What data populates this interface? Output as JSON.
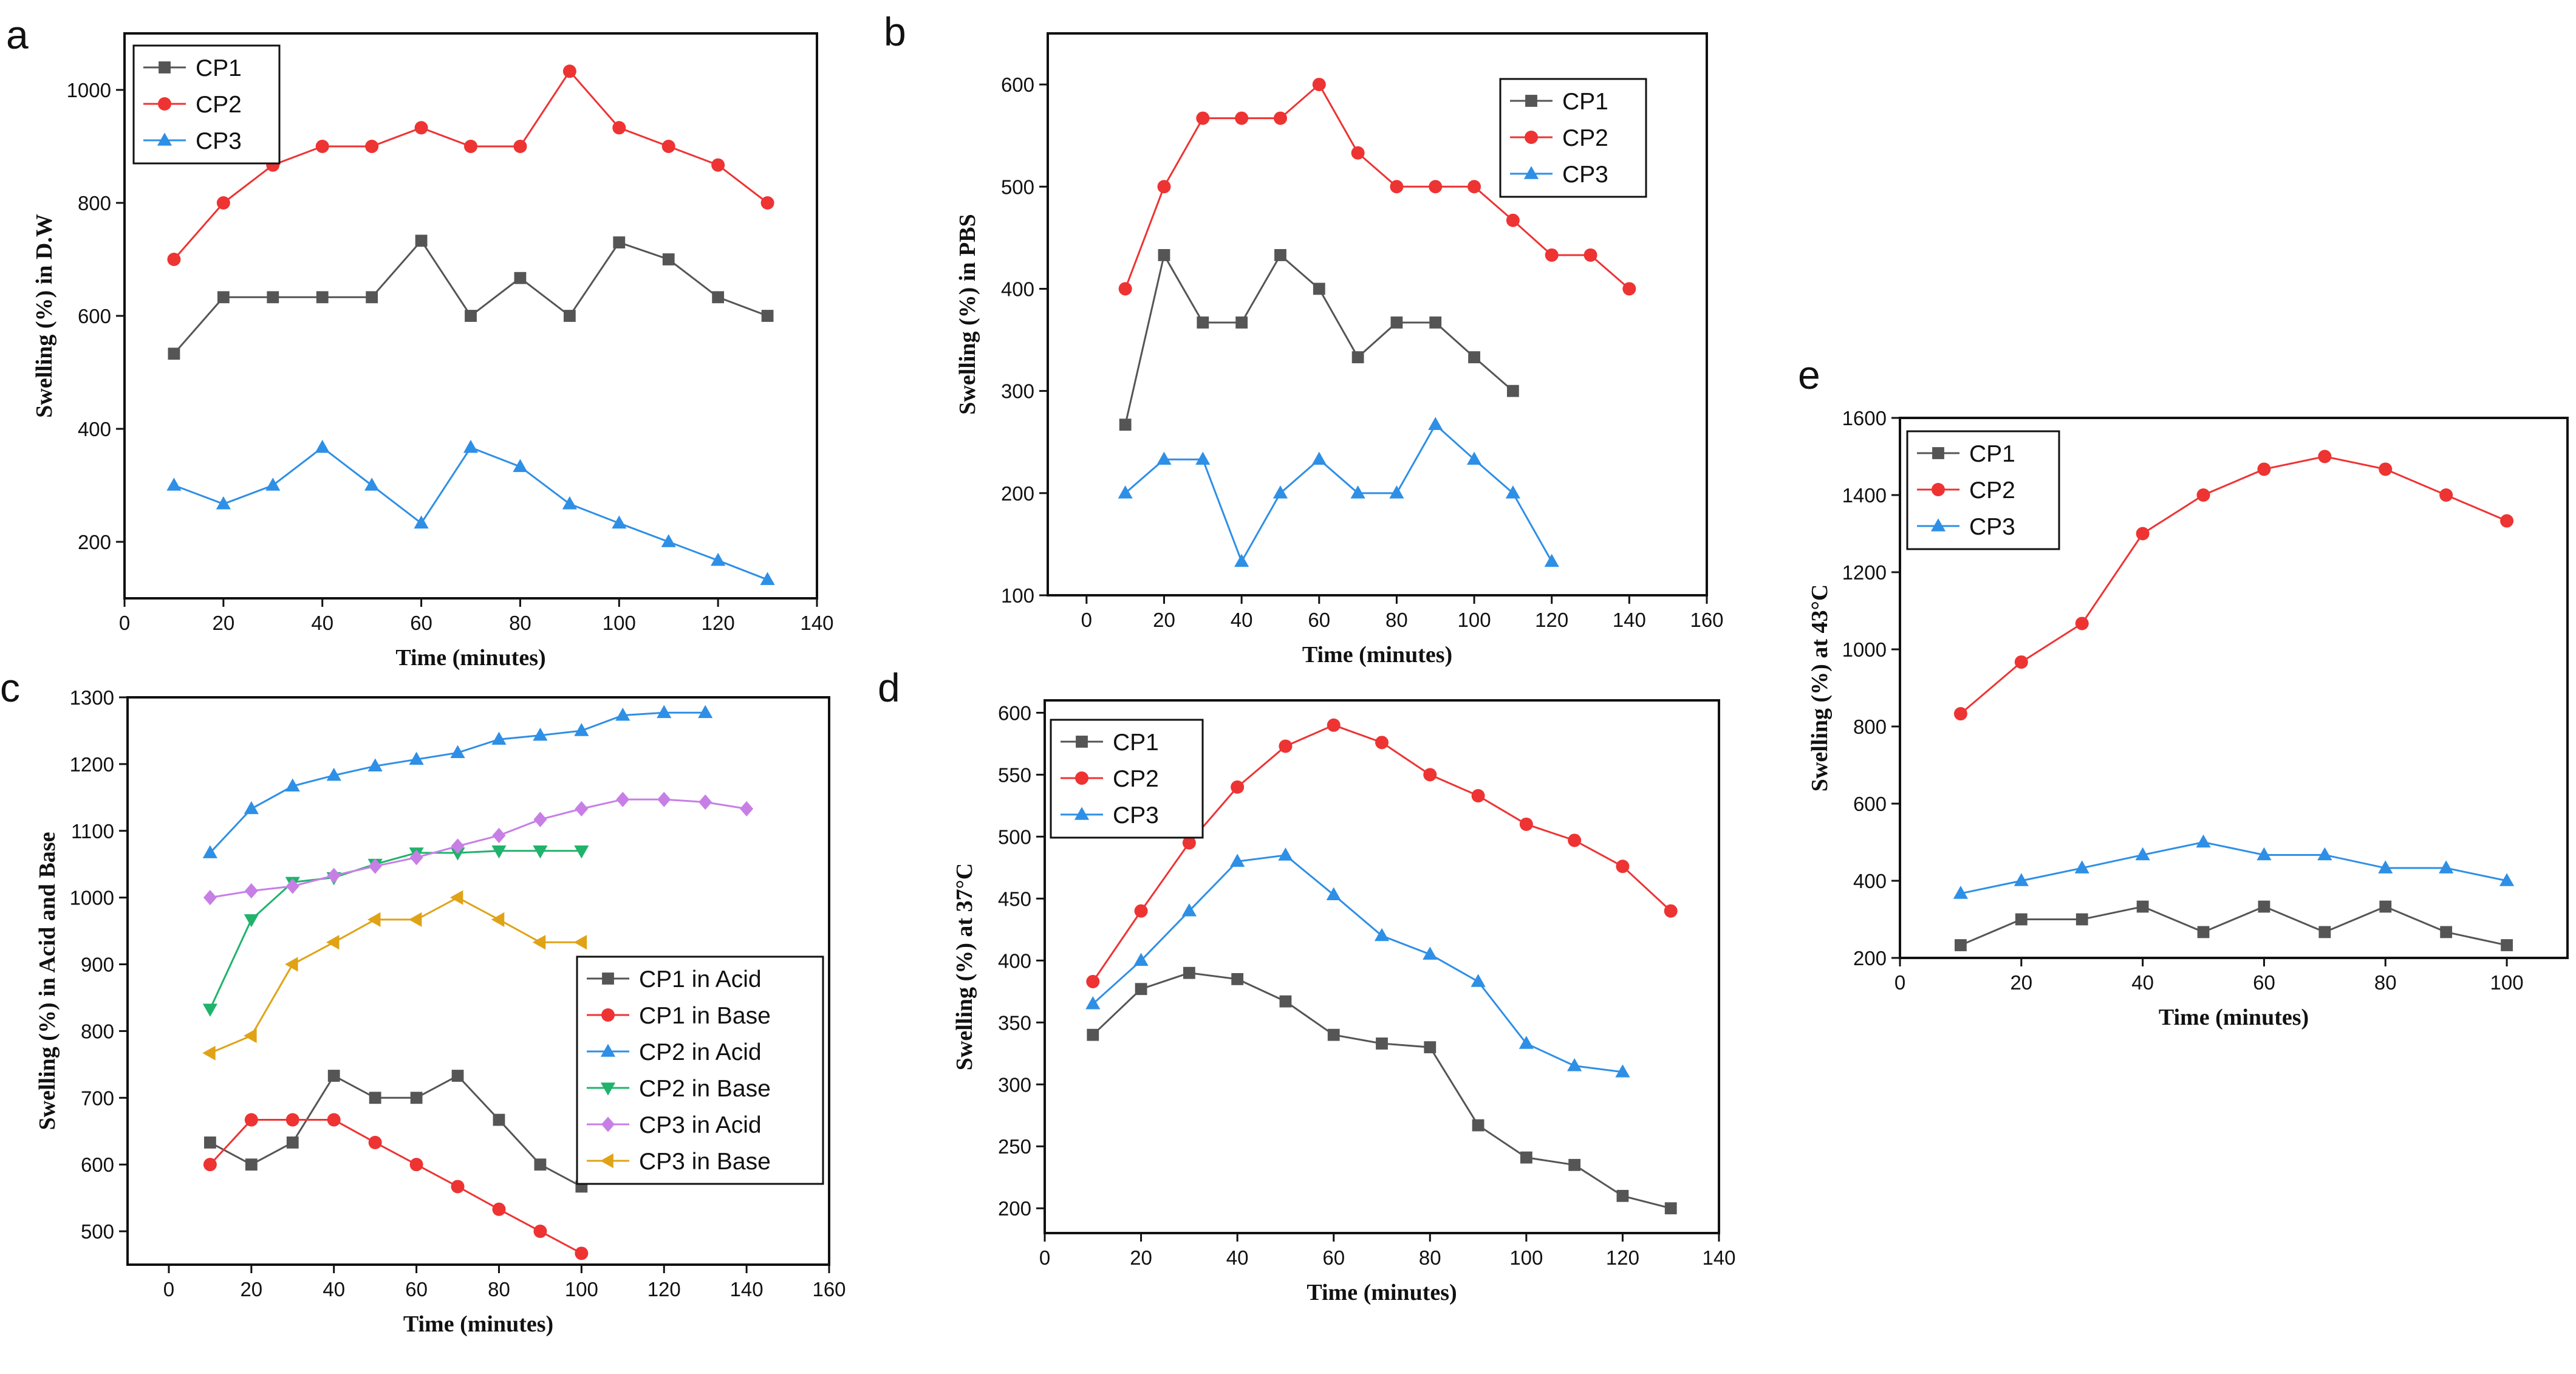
{
  "chart_data": [
    {
      "panel": "a",
      "type": "line",
      "ylabel": "Swelling (%) in D.W",
      "xlabel": "Time (minutes)",
      "xlim": [
        0,
        140
      ],
      "ylim": [
        100,
        1100
      ],
      "xticks": [
        0,
        20,
        40,
        60,
        80,
        100,
        120,
        140
      ],
      "yticks": [
        200,
        400,
        600,
        800,
        1000
      ],
      "legend_position": "top-left",
      "series": [
        {
          "name": "CP1",
          "color": "#555555",
          "marker": "square",
          "x": [
            10,
            20,
            30,
            40,
            50,
            60,
            70,
            80,
            90,
            100,
            110,
            120,
            130
          ],
          "y": [
            533,
            633,
            633,
            633,
            633,
            733,
            600,
            667,
            600,
            730,
            700,
            633,
            600
          ]
        },
        {
          "name": "CP2",
          "color": "#ee3333",
          "marker": "circle",
          "x": [
            10,
            20,
            30,
            40,
            50,
            60,
            70,
            80,
            90,
            100,
            110,
            120,
            130
          ],
          "y": [
            700,
            800,
            867,
            900,
            900,
            933,
            900,
            900,
            1033,
            933,
            900,
            867,
            800
          ]
        },
        {
          "name": "CP3",
          "color": "#2e8fe6",
          "marker": "triangle-up",
          "x": [
            10,
            20,
            30,
            40,
            50,
            60,
            70,
            80,
            90,
            100,
            110,
            120,
            130
          ],
          "y": [
            300,
            267,
            300,
            367,
            300,
            233,
            367,
            333,
            267,
            233,
            200,
            167,
            133
          ]
        }
      ]
    },
    {
      "panel": "b",
      "type": "line",
      "ylabel": "Swelling (%) in PBS",
      "xlabel": "Time (minutes)",
      "xlim": [
        -10,
        160
      ],
      "ylim": [
        100,
        650
      ],
      "xticks": [
        0,
        20,
        40,
        60,
        80,
        100,
        120,
        140,
        160
      ],
      "yticks": [
        100,
        200,
        300,
        400,
        500,
        600
      ],
      "legend_position": "top-right",
      "series": [
        {
          "name": "CP1",
          "color": "#555555",
          "marker": "square",
          "x": [
            10,
            20,
            30,
            40,
            50,
            60,
            70,
            80,
            90,
            100,
            110
          ],
          "y": [
            267,
            433,
            367,
            367,
            433,
            400,
            333,
            367,
            367,
            333,
            300
          ]
        },
        {
          "name": "CP2",
          "color": "#ee3333",
          "marker": "circle",
          "x": [
            10,
            20,
            30,
            40,
            50,
            60,
            70,
            80,
            90,
            100,
            110,
            120,
            130,
            140
          ],
          "y": [
            400,
            500,
            567,
            567,
            567,
            600,
            533,
            500,
            500,
            500,
            467,
            433,
            433,
            400
          ]
        },
        {
          "name": "CP3",
          "color": "#2e8fe6",
          "marker": "triangle-up",
          "x": [
            10,
            20,
            30,
            40,
            50,
            60,
            70,
            80,
            90,
            100,
            110,
            120
          ],
          "y": [
            200,
            233,
            233,
            133,
            200,
            233,
            200,
            200,
            267,
            233,
            200,
            133
          ]
        }
      ]
    },
    {
      "panel": "c",
      "type": "line",
      "ylabel": "Swelling (%) in Acid and Base",
      "xlabel": "Time (minutes)",
      "xlim": [
        -10,
        160
      ],
      "ylim": [
        450,
        1300
      ],
      "xticks": [
        0,
        20,
        40,
        60,
        80,
        100,
        120,
        140,
        160
      ],
      "yticks": [
        500,
        600,
        700,
        800,
        900,
        1000,
        1100,
        1200,
        1300
      ],
      "legend_position": "bottom-right",
      "series": [
        {
          "name": "CP1 in Acid",
          "color": "#555555",
          "marker": "square",
          "x": [
            10,
            20,
            30,
            40,
            50,
            60,
            70,
            80,
            90,
            100
          ],
          "y": [
            633,
            600,
            633,
            733,
            700,
            700,
            733,
            667,
            600,
            567
          ]
        },
        {
          "name": "CP1 in Base",
          "color": "#ee3333",
          "marker": "circle",
          "x": [
            10,
            20,
            30,
            40,
            50,
            60,
            70,
            80,
            90,
            100
          ],
          "y": [
            600,
            667,
            667,
            667,
            633,
            600,
            567,
            533,
            500,
            467
          ]
        },
        {
          "name": "CP2 in Acid",
          "color": "#2e8fe6",
          "marker": "triangle-up",
          "x": [
            10,
            20,
            30,
            40,
            50,
            60,
            70,
            80,
            90,
            100,
            110,
            120,
            130
          ],
          "y": [
            1067,
            1133,
            1167,
            1183,
            1197,
            1207,
            1217,
            1237,
            1243,
            1250,
            1273,
            1277,
            1277
          ]
        },
        {
          "name": "CP2 in Base",
          "color": "#1fb36b",
          "marker": "triangle-down",
          "x": [
            10,
            20,
            30,
            40,
            50,
            60,
            70,
            80,
            90,
            100
          ],
          "y": [
            833,
            967,
            1023,
            1030,
            1050,
            1067,
            1067,
            1070,
            1070,
            1070
          ]
        },
        {
          "name": "CP3 in Acid",
          "color": "#c77fe6",
          "marker": "diamond",
          "x": [
            10,
            20,
            30,
            40,
            50,
            60,
            70,
            80,
            90,
            100,
            110,
            120,
            130,
            140
          ],
          "y": [
            1000,
            1010,
            1017,
            1033,
            1047,
            1060,
            1077,
            1093,
            1117,
            1133,
            1147,
            1147,
            1143,
            1133
          ]
        },
        {
          "name": "CP3 in Base",
          "color": "#e0a316",
          "marker": "triangle-left",
          "x": [
            10,
            20,
            30,
            40,
            50,
            60,
            70,
            80,
            90,
            100
          ],
          "y": [
            767,
            793,
            900,
            933,
            967,
            967,
            1000,
            967,
            933,
            933
          ]
        }
      ]
    },
    {
      "panel": "d",
      "type": "line",
      "ylabel": "Swelling (%) at 37°C",
      "xlabel": "Time (minutes)",
      "xlim": [
        0,
        140
      ],
      "ylim": [
        180,
        610
      ],
      "xticks": [
        0,
        20,
        40,
        60,
        80,
        100,
        120,
        140
      ],
      "yticks": [
        200,
        250,
        300,
        350,
        400,
        450,
        500,
        550,
        600
      ],
      "legend_position": "top-left",
      "series": [
        {
          "name": "CP1",
          "color": "#555555",
          "marker": "square",
          "x": [
            10,
            20,
            30,
            40,
            50,
            60,
            70,
            80,
            90,
            100,
            110,
            120,
            130
          ],
          "y": [
            340,
            377,
            390,
            385,
            367,
            340,
            333,
            330,
            267,
            241,
            235,
            210,
            200
          ]
        },
        {
          "name": "CP2",
          "color": "#ee3333",
          "marker": "circle",
          "x": [
            10,
            20,
            30,
            40,
            50,
            60,
            70,
            80,
            90,
            100,
            110,
            120,
            130
          ],
          "y": [
            383,
            440,
            495,
            540,
            573,
            590,
            576,
            550,
            533,
            510,
            497,
            476,
            440
          ]
        },
        {
          "name": "CP3",
          "color": "#2e8fe6",
          "marker": "triangle-up",
          "x": [
            10,
            20,
            30,
            40,
            50,
            60,
            70,
            80,
            90,
            100,
            110,
            120
          ],
          "y": [
            365,
            400,
            440,
            480,
            485,
            453,
            420,
            405,
            383,
            333,
            315,
            310
          ]
        }
      ]
    },
    {
      "panel": "e",
      "type": "line",
      "ylabel": "Swelling (%) at 43°C",
      "xlabel": "Time (minutes)",
      "xlim": [
        0,
        110
      ],
      "ylim": [
        200,
        1600
      ],
      "xticks": [
        0,
        20,
        40,
        60,
        80,
        100
      ],
      "yticks": [
        200,
        400,
        600,
        800,
        1000,
        1200,
        1400,
        1600
      ],
      "legend_position": "top-left",
      "series": [
        {
          "name": "CP1",
          "color": "#555555",
          "marker": "square",
          "x": [
            10,
            20,
            30,
            40,
            50,
            60,
            70,
            80,
            90,
            100
          ],
          "y": [
            233,
            300,
            300,
            333,
            267,
            333,
            267,
            333,
            267,
            233
          ]
        },
        {
          "name": "CP2",
          "color": "#ee3333",
          "marker": "circle",
          "x": [
            10,
            20,
            30,
            40,
            50,
            60,
            70,
            80,
            90,
            100
          ],
          "y": [
            833,
            967,
            1067,
            1300,
            1400,
            1467,
            1500,
            1467,
            1400,
            1333
          ]
        },
        {
          "name": "CP3",
          "color": "#2e8fe6",
          "marker": "triangle-up",
          "x": [
            10,
            20,
            30,
            40,
            50,
            60,
            70,
            80,
            90,
            100
          ],
          "y": [
            367,
            400,
            433,
            467,
            500,
            467,
            467,
            433,
            433,
            400
          ]
        }
      ]
    }
  ]
}
